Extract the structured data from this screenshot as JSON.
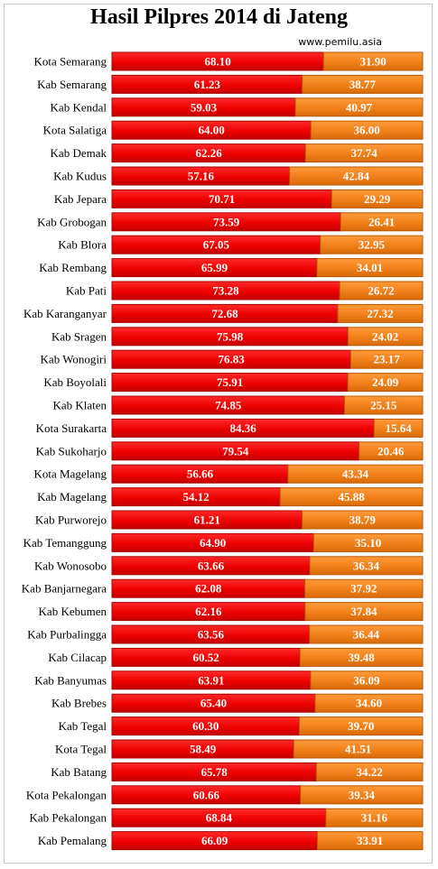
{
  "title": "Hasil Pilpres 2014 di Jateng",
  "source": "www.pemilu.asia",
  "colors": {
    "series1": "#ee0000",
    "series1_dark": "#a80000",
    "series2": "#f0801a",
    "series2_dark": "#b85800",
    "label_text": "#ffffff"
  },
  "chart_data": {
    "type": "bar",
    "orientation": "horizontal",
    "stacked": "percent",
    "title": "Hasil Pilpres 2014 di Jateng",
    "xlabel": "",
    "ylabel": "",
    "xlim": [
      0,
      100
    ],
    "grid": false,
    "legend": "none",
    "categories": [
      "Kota Semarang",
      "Kab Semarang",
      "Kab Kendal",
      "Kota Salatiga",
      "Kab Demak",
      "Kab Kudus",
      "Kab Jepara",
      "Kab Grobogan",
      "Kab Blora",
      "Kab Rembang",
      "Kab Pati",
      "Kab Karanganyar",
      "Kab Sragen",
      "Kab Wonogiri",
      "Kab Boyolali",
      "Kab Klaten",
      "Kota Surakarta",
      "Kab Sukoharjo",
      "Kota Magelang",
      "Kab Magelang",
      "Kab Purworejo",
      "Kab Temanggung",
      "Kab Wonosobo",
      "Kab Banjarnegara",
      "Kab Kebumen",
      "Kab Purbalingga",
      "Kab Cilacap",
      "Kab Banyumas",
      "Kab Brebes",
      "Kab Tegal",
      "Kota Tegal",
      "Kab Batang",
      "Kota Pekalongan",
      "Kab Pekalongan",
      "Kab Pemalang"
    ],
    "series": [
      {
        "values": [
          "68.10",
          "61.23",
          "59.03",
          "64.00",
          "62.26",
          "57.16",
          "70.71",
          "73.59",
          "67.05",
          "65.99",
          "73.28",
          "72.68",
          "75.98",
          "76.83",
          "75.91",
          "74.85",
          "84.36",
          "79.54",
          "56.66",
          "54.12",
          "61.21",
          "64.90",
          "63.66",
          "62.08",
          "62.16",
          "63.56",
          "60.52",
          "63.91",
          "65.40",
          "60.30",
          "58.49",
          "65.78",
          "60.66",
          "68.84",
          "66.09"
        ]
      },
      {
        "values": [
          "31.90",
          "38.77",
          "40.97",
          "36.00",
          "37.74",
          "42.84",
          "29.29",
          "26.41",
          "32.95",
          "34.01",
          "26.72",
          "27.32",
          "24.02",
          "23.17",
          "24.09",
          "25.15",
          "15.64",
          "20.46",
          "43.34",
          "45.88",
          "38.79",
          "35.10",
          "36.34",
          "37.92",
          "37.84",
          "36.44",
          "39.48",
          "36.09",
          "34.60",
          "39.70",
          "41.51",
          "34.22",
          "39.34",
          "31.16",
          "33.91"
        ]
      }
    ]
  }
}
